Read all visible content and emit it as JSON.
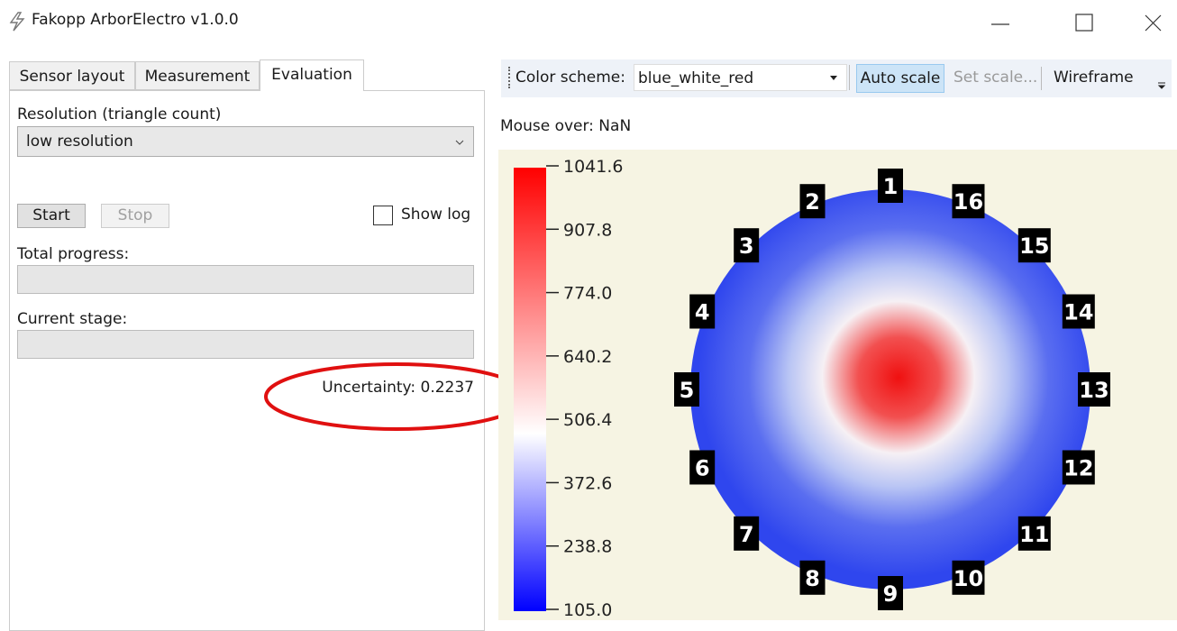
{
  "window": {
    "title": "Fakopp ArborElectro v1.0.0"
  },
  "tabs": [
    "Sensor layout",
    "Measurement",
    "Evaluation"
  ],
  "evaluation": {
    "resolution_label": "Resolution (triangle count)",
    "resolution_value": "low resolution",
    "start": "Start",
    "stop": "Stop",
    "show_log": "Show log",
    "total_progress": "Total progress:",
    "current_stage": "Current stage:",
    "uncertainty": "Uncertainty: 0.2237"
  },
  "toolbar": {
    "color_scheme_label": "Color scheme:",
    "color_scheme": "blue_white_red",
    "auto_scale": "Auto scale",
    "set_scale": "Set scale...",
    "wireframe": "Wireframe"
  },
  "mouse_over": "Mouse over: NaN",
  "colorbar": {
    "ticks": [
      "1041.6",
      "907.8",
      "774.0",
      "640.2",
      "506.4",
      "372.6",
      "238.8",
      "105.0"
    ]
  },
  "sensors": [
    "1",
    "2",
    "3",
    "4",
    "5",
    "6",
    "7",
    "8",
    "9",
    "10",
    "11",
    "12",
    "13",
    "14",
    "15",
    "16"
  ]
}
